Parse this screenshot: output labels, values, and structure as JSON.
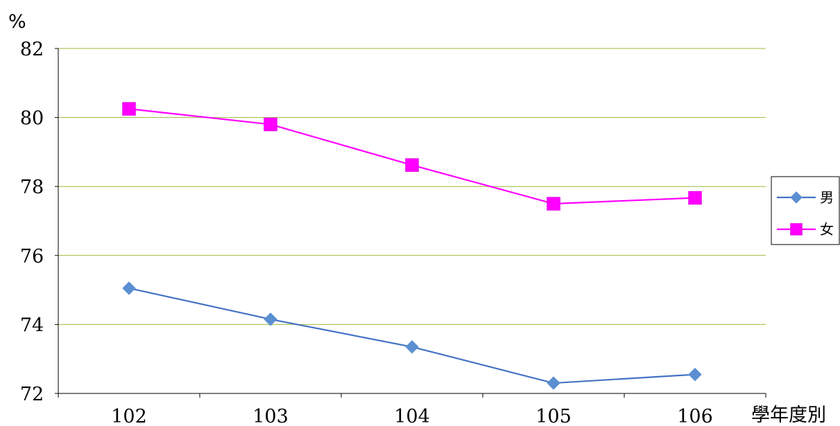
{
  "chart_data": {
    "type": "line",
    "ylabel": "%",
    "xlabel": "學年度別",
    "categories": [
      "102",
      "103",
      "104",
      "105",
      "106"
    ],
    "ylim": [
      72,
      82
    ],
    "yticks": [
      "82",
      "80",
      "78",
      "76",
      "74",
      "72"
    ],
    "grid": true,
    "legend_position": "right",
    "series": [
      {
        "name": "男",
        "values": [
          75.05,
          74.15,
          73.35,
          72.3,
          72.55
        ],
        "color": "#4472C4",
        "marker": "diamond",
        "marker_color": "#5B8FD0"
      },
      {
        "name": "女",
        "values": [
          80.25,
          79.8,
          78.62,
          77.5,
          77.67
        ],
        "color": "#FF00FF",
        "marker": "square",
        "marker_color": "#FF00FF"
      }
    ],
    "gridline_color": "#99BB33"
  }
}
